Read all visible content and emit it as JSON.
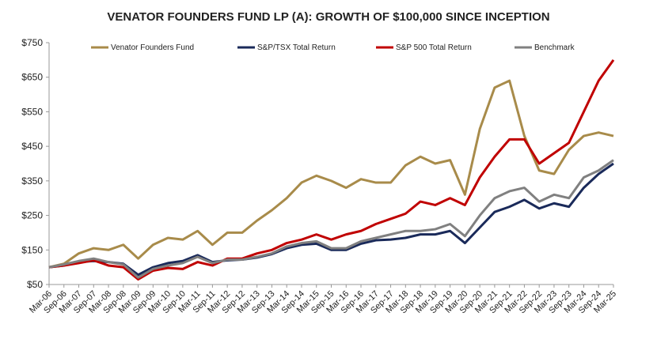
{
  "chart_data": {
    "type": "line",
    "title": "VENATOR FOUNDERS FUND LP (A):  GROWTH OF $100,000 SINCE INCEPTION",
    "categories": [
      "Mar-06",
      "Sep-06",
      "Mar-07",
      "Sep-07",
      "Mar-08",
      "Sep-08",
      "Mar-09",
      "Sep-09",
      "Mar-10",
      "Sep-10",
      "Mar-11",
      "Sep-11",
      "Mar-12",
      "Sep-12",
      "Mar-13",
      "Sep-13",
      "Mar-14",
      "Sep-14",
      "Mar-15",
      "Sep-15",
      "Mar-16",
      "Sep-16",
      "Mar-17",
      "Sep-17",
      "Mar-18",
      "Sep-18",
      "Mar-19",
      "Sep-19",
      "Mar-20",
      "Sep-20",
      "Mar-21",
      "Sep-21",
      "Mar-22",
      "Sep-22",
      "Mar-23",
      "Sep-23",
      "Mar-24",
      "Sep-24",
      "Mar-25"
    ],
    "series": [
      {
        "name": "Venator Founders Fund",
        "color": "#a88b4a",
        "values": [
          100,
          110,
          140,
          155,
          150,
          165,
          125,
          165,
          185,
          180,
          205,
          165,
          200,
          200,
          235,
          265,
          300,
          345,
          365,
          350,
          330,
          355,
          345,
          345,
          395,
          420,
          400,
          410,
          310,
          500,
          620,
          640,
          480,
          380,
          370,
          440,
          480,
          490,
          480
        ]
      },
      {
        "name": "S&P/TSX Total Return",
        "color": "#1a2a5a",
        "values": [
          100,
          105,
          115,
          118,
          115,
          110,
          78,
          100,
          112,
          118,
          135,
          115,
          120,
          122,
          128,
          138,
          155,
          165,
          168,
          150,
          150,
          168,
          178,
          180,
          185,
          195,
          195,
          205,
          170,
          215,
          260,
          275,
          295,
          270,
          285,
          275,
          330,
          370,
          400
        ]
      },
      {
        "name": "S&P 500 Total Return",
        "color": "#c00000",
        "values": [
          100,
          105,
          112,
          120,
          105,
          100,
          65,
          90,
          98,
          95,
          115,
          105,
          125,
          125,
          140,
          150,
          170,
          180,
          195,
          180,
          195,
          205,
          225,
          240,
          255,
          290,
          280,
          300,
          280,
          360,
          420,
          470,
          470,
          400,
          430,
          460,
          550,
          640,
          700
        ]
      },
      {
        "name": "Benchmark",
        "color": "#808080",
        "values": [
          100,
          108,
          118,
          125,
          115,
          108,
          70,
          95,
          105,
          112,
          130,
          112,
          122,
          122,
          130,
          140,
          160,
          170,
          175,
          155,
          155,
          175,
          185,
          195,
          205,
          205,
          210,
          225,
          190,
          250,
          300,
          320,
          330,
          290,
          310,
          300,
          360,
          380,
          410
        ]
      }
    ],
    "ylim": [
      50,
      750
    ],
    "yticks": [
      {
        "value": 50,
        "label": "$50"
      },
      {
        "value": 150,
        "label": "$150"
      },
      {
        "value": 250,
        "label": "$250"
      },
      {
        "value": 350,
        "label": "$350"
      },
      {
        "value": 450,
        "label": "$450"
      },
      {
        "value": 550,
        "label": "$550"
      },
      {
        "value": 650,
        "label": "$650"
      },
      {
        "value": 750,
        "label": "$750"
      }
    ],
    "grid": false
  }
}
